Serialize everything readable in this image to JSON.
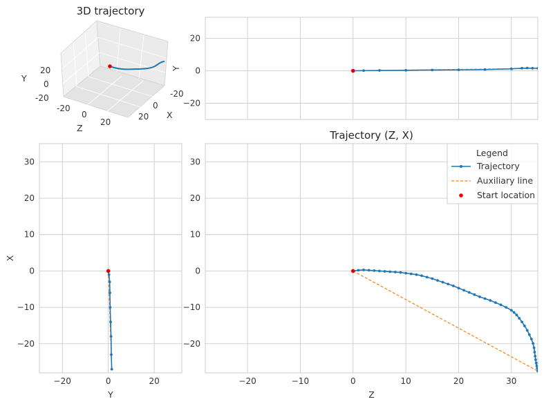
{
  "chart_data": [
    {
      "type": "line3d",
      "title": "3D trajectory",
      "xlabel": "X",
      "ylabel": "Y",
      "zlabel": "Z",
      "x_ticks": [
        "-20",
        "0",
        "20"
      ],
      "y_ticks": [
        "20",
        "0",
        "-20"
      ],
      "z_ticks": [
        "-20",
        "0",
        "20"
      ]
    },
    {
      "type": "line",
      "title": "",
      "xlabel": "",
      "ylabel": "Y",
      "xlim": [
        -28,
        35
      ],
      "ylim": [
        -30,
        33
      ],
      "x_ticks": [
        -20,
        -10,
        0,
        10,
        20,
        30
      ],
      "y_ticks": [
        -20,
        0,
        20
      ],
      "y_tick_labels": [
        "−20",
        "0",
        "20"
      ],
      "grid": true,
      "series": [
        {
          "name": "Trajectory",
          "x": [
            0,
            2,
            5,
            10,
            15,
            20,
            25,
            30,
            32,
            33,
            34,
            35
          ],
          "y": [
            0,
            0.1,
            0.2,
            0.3,
            0.5,
            0.6,
            0.8,
            1.2,
            1.6,
            1.7,
            1.6,
            1.5
          ]
        },
        {
          "name": "Auxiliary line",
          "x": [
            0,
            35
          ],
          "y": [
            0,
            1.5
          ]
        },
        {
          "name": "Start location",
          "x": [
            0
          ],
          "y": [
            0
          ]
        }
      ]
    },
    {
      "type": "line",
      "title": "",
      "xlabel": "Y",
      "ylabel": "X",
      "xlim": [
        -30,
        32
      ],
      "ylim": [
        -28,
        35
      ],
      "x_ticks": [
        -20,
        0,
        20
      ],
      "x_tick_labels": [
        "−20",
        "0",
        "20"
      ],
      "y_ticks": [
        -20,
        -10,
        0,
        10,
        20,
        30
      ],
      "y_tick_labels": [
        "−20",
        "−10",
        "0",
        "10",
        "20",
        "30"
      ],
      "grid": true,
      "series": [
        {
          "name": "Trajectory",
          "x": [
            0,
            0.3,
            0.6,
            0.7,
            0.8,
            1.0,
            1.2,
            1.3,
            1.5
          ],
          "y": [
            0,
            -1,
            -3,
            -6,
            -10,
            -14,
            -18,
            -23,
            -27
          ]
        },
        {
          "name": "Auxiliary line",
          "x": [
            0,
            1.5
          ],
          "y": [
            0,
            -27
          ]
        },
        {
          "name": "Start location",
          "x": [
            0
          ],
          "y": [
            0
          ]
        }
      ]
    },
    {
      "type": "line",
      "title": "Trajectory (Z, X)",
      "xlabel": "Z",
      "ylabel": "",
      "xlim": [
        -28,
        35
      ],
      "ylim": [
        -28,
        35
      ],
      "x_ticks": [
        -20,
        -10,
        0,
        10,
        20,
        30
      ],
      "x_tick_labels": [
        "−20",
        "−10",
        "0",
        "10",
        "20",
        "30"
      ],
      "y_ticks": [
        -20,
        -10,
        0,
        10,
        20,
        30
      ],
      "y_tick_labels": [
        "−20",
        "−10",
        "0",
        "10",
        "20",
        "30"
      ],
      "grid": true,
      "legend": {
        "title": "Legend",
        "placement": "top-right",
        "entries": [
          "Trajectory",
          "Auxiliary line",
          "Start location"
        ]
      },
      "colors": {
        "trajectory": "#1f77b4",
        "auxiliary": "#ff7f0e",
        "start": "#e00000"
      },
      "series": [
        {
          "name": "Trajectory",
          "x": [
            0,
            1,
            2,
            3,
            4,
            5,
            6,
            7,
            8,
            9,
            10,
            11,
            12,
            13,
            14,
            15,
            16,
            17,
            18,
            19,
            20,
            21,
            22,
            23,
            24,
            25,
            26,
            27,
            28,
            29,
            30,
            30.5,
            31,
            31.5,
            32,
            32.5,
            33,
            33.4,
            33.8,
            34.1,
            34.3,
            34.4,
            34.5,
            34.6,
            34.7,
            34.8,
            34.9,
            35
          ],
          "y": [
            0,
            0.2,
            0.3,
            0.2,
            0.1,
            0,
            -0.1,
            -0.2,
            -0.3,
            -0.4,
            -0.6,
            -0.8,
            -1.0,
            -1.3,
            -1.7,
            -2.1,
            -2.6,
            -3.1,
            -3.6,
            -4.1,
            -4.7,
            -5.3,
            -5.9,
            -6.5,
            -7.1,
            -7.6,
            -8.1,
            -8.7,
            -9.3,
            -10.0,
            -10.8,
            -11.4,
            -12.1,
            -13.0,
            -14.0,
            -15.1,
            -16.3,
            -17.5,
            -18.7,
            -19.9,
            -21.1,
            -22.3,
            -23.4,
            -24.4,
            -25.3,
            -26.1,
            -26.8,
            -27.5
          ]
        },
        {
          "name": "Auxiliary line",
          "x": [
            0,
            35
          ],
          "y": [
            0,
            -27.5
          ]
        },
        {
          "name": "Start location",
          "x": [
            0
          ],
          "y": [
            0
          ]
        }
      ]
    }
  ]
}
